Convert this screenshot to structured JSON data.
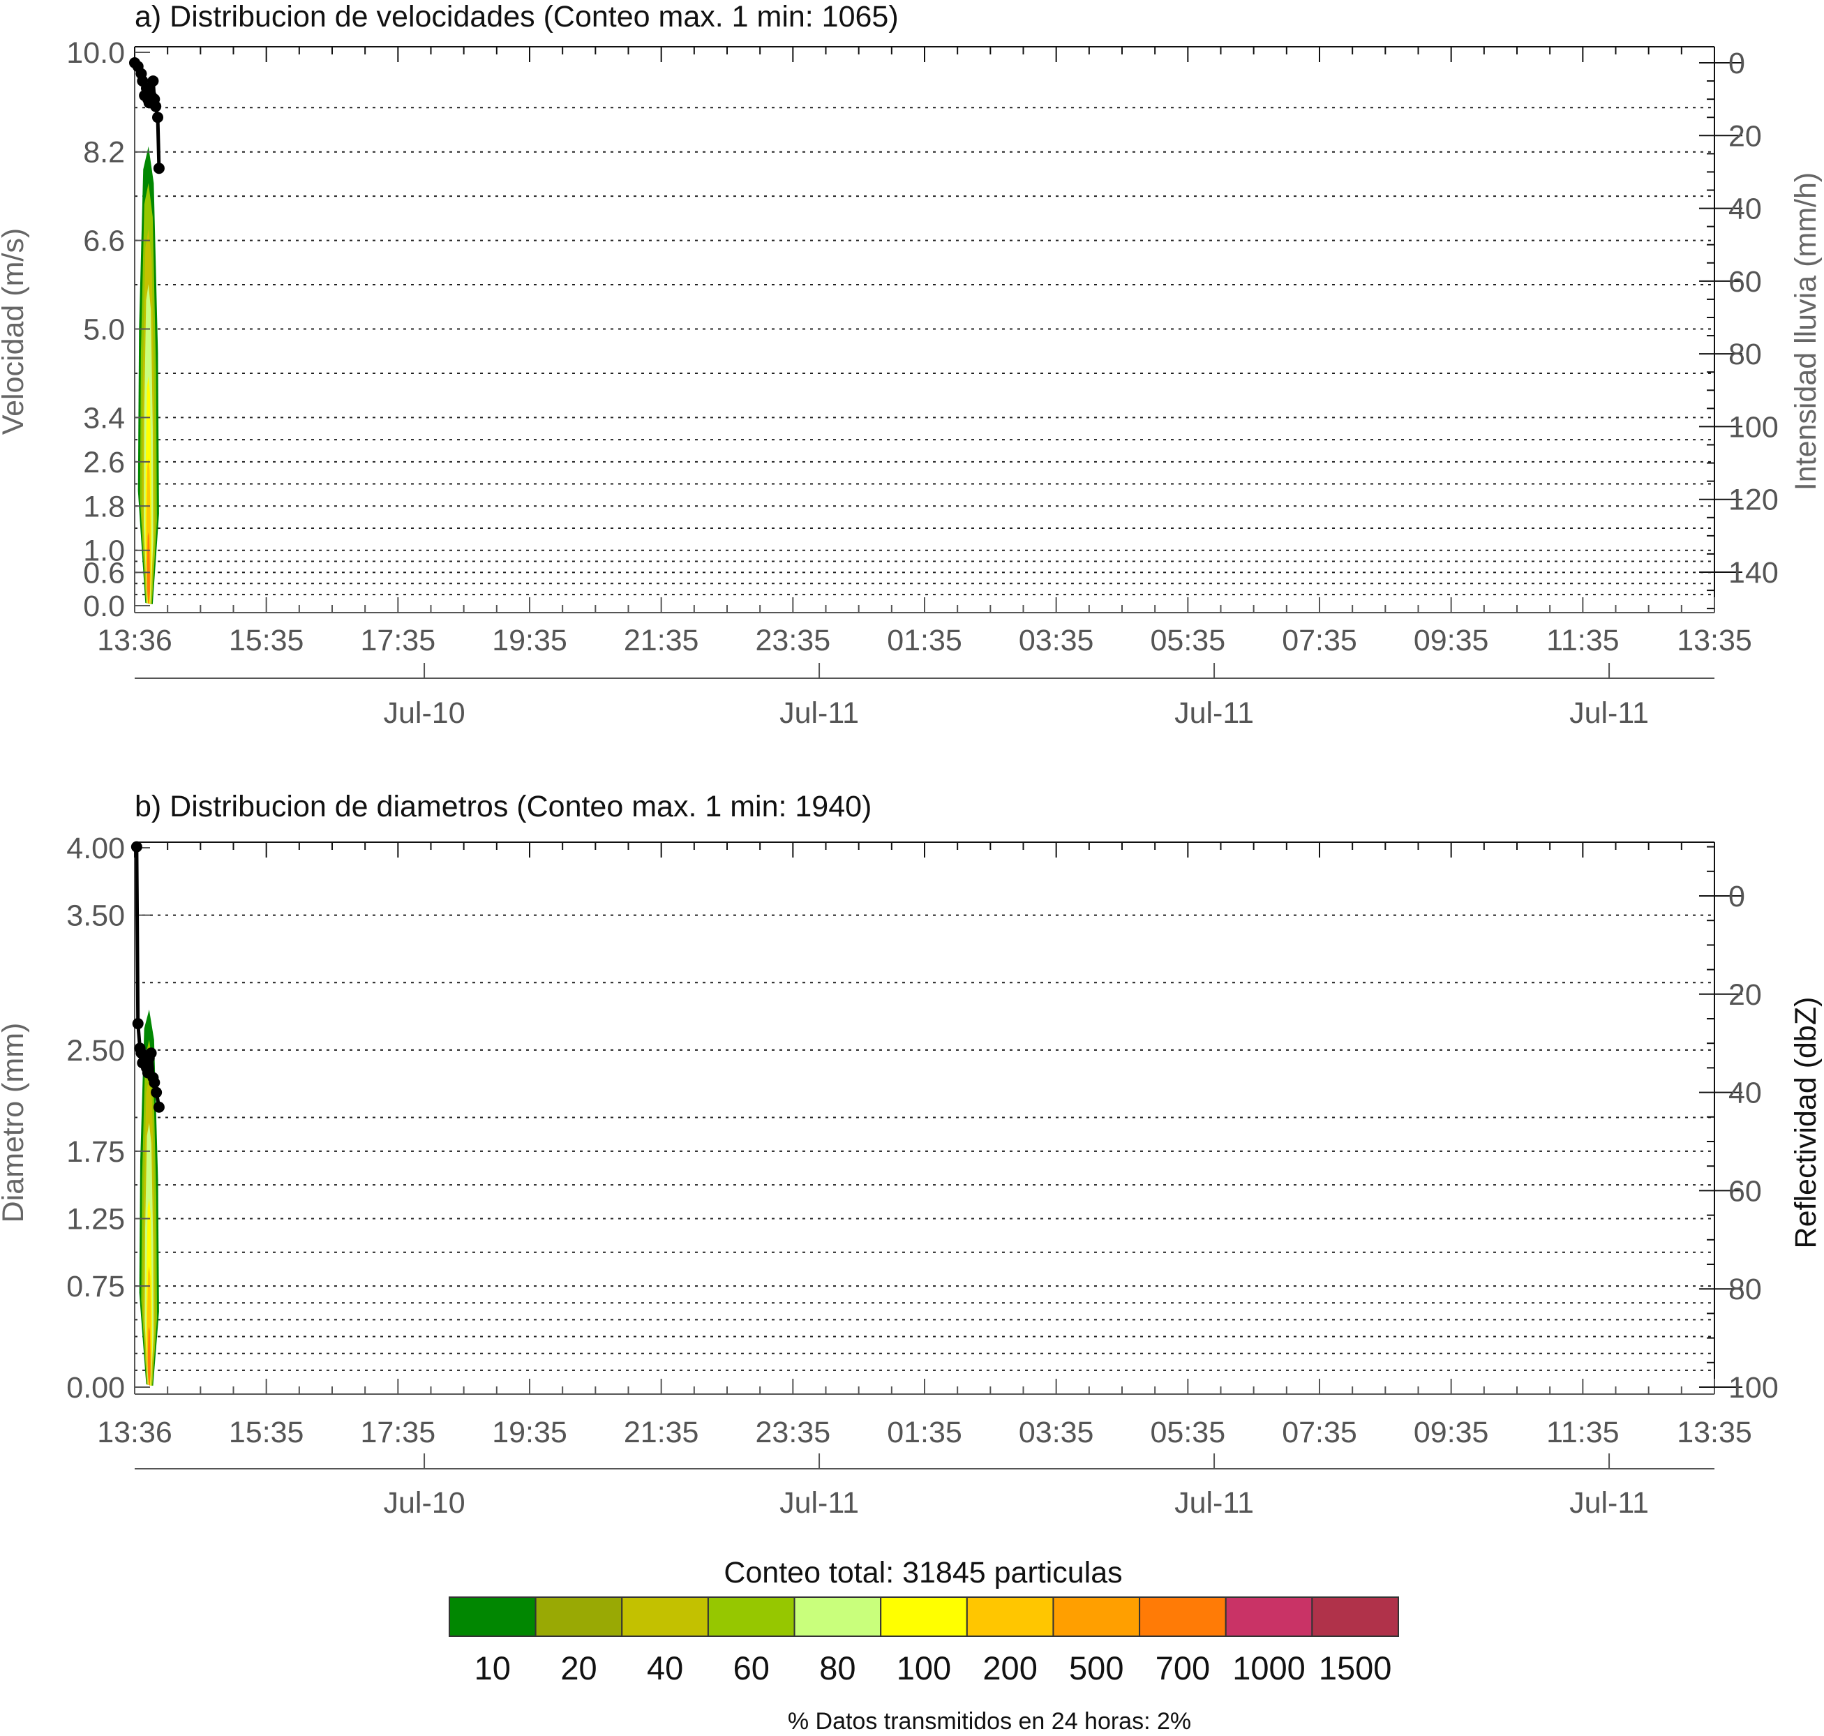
{
  "chart_data": [
    {
      "type": "heatmap",
      "panel": "a",
      "title": "a) Distribucion de velocidades (Conteo max. 1 min: 1065)",
      "ylabel": "Velocidad (m/s)",
      "y2label": "Intensidad lluvia (mm/h)",
      "ylim": [
        0.0,
        10.0
      ],
      "y2lim": [
        0,
        150
      ],
      "y2_inverted": true,
      "y_ticks": [
        "0.0",
        "0.6",
        "1.0",
        "1.8",
        "2.6",
        "3.4",
        "5.0",
        "6.6",
        "8.2",
        "10.0"
      ],
      "y_tick_values": [
        0.0,
        0.6,
        1.0,
        1.8,
        2.6,
        3.4,
        5.0,
        6.6,
        8.2,
        10.0
      ],
      "y_grid_values": [
        0.2,
        0.4,
        0.6,
        0.8,
        1.0,
        1.4,
        1.8,
        2.2,
        2.6,
        3.0,
        3.4,
        4.2,
        5.0,
        5.8,
        6.6,
        7.4,
        8.2,
        9.0
      ],
      "y2_ticks": [
        "0",
        "20",
        "40",
        "60",
        "80",
        "100",
        "120",
        "140"
      ],
      "y2_tick_values": [
        0,
        20,
        40,
        60,
        80,
        100,
        120,
        140
      ],
      "x_ticks": [
        "13:36",
        "15:35",
        "17:35",
        "19:35",
        "21:35",
        "23:35",
        "01:35",
        "03:35",
        "05:35",
        "07:35",
        "09:35",
        "11:35",
        "13:35"
      ],
      "date_ticks": [
        "Jul-10",
        "Jul-11",
        "Jul-11",
        "Jul-11"
      ],
      "date_tick_hours": [
        4.4,
        10.4,
        16.4,
        22.4
      ],
      "xlim_hours": [
        0,
        24
      ],
      "grid": "dotted horizontal",
      "line_series": {
        "name": "",
        "x_hours": [
          0.0,
          0.05,
          0.1,
          0.12,
          0.15,
          0.18,
          0.2,
          0.22,
          0.25,
          0.28,
          0.3,
          0.32,
          0.35,
          0.37
        ],
        "y2_values": [
          0,
          1,
          3,
          5,
          9,
          7,
          10,
          11,
          9,
          5,
          10,
          12,
          15,
          29
        ]
      },
      "heatmap_extent": {
        "x_hours": [
          0.05,
          0.37
        ],
        "y": [
          0.0,
          8.3
        ]
      }
    },
    {
      "type": "heatmap",
      "panel": "b",
      "title": "b) Distribucion de diametros (Conteo max. 1 min: 1940)",
      "ylabel": "Diametro (mm)",
      "y2label": "Reflectividad (dbZ)",
      "ylim": [
        0.0,
        4.0
      ],
      "y2lim": [
        -10,
        100
      ],
      "y2_inverted": true,
      "y_ticks": [
        "0.00",
        "0.75",
        "1.25",
        "1.75",
        "2.50",
        "3.50",
        "4.00"
      ],
      "y_tick_values": [
        0.0,
        0.75,
        1.25,
        1.75,
        2.5,
        3.5,
        4.0
      ],
      "y_grid_values": [
        0.125,
        0.25,
        0.375,
        0.5,
        0.625,
        0.75,
        1.0,
        1.25,
        1.5,
        1.75,
        2.0,
        2.5,
        3.0,
        3.5
      ],
      "y2_ticks": [
        "0",
        "20",
        "40",
        "60",
        "80",
        "100"
      ],
      "y2_tick_values": [
        0,
        20,
        40,
        60,
        80,
        100
      ],
      "x_ticks": [
        "13:36",
        "15:35",
        "17:35",
        "19:35",
        "21:35",
        "23:35",
        "01:35",
        "03:35",
        "05:35",
        "07:35",
        "09:35",
        "11:35",
        "13:35"
      ],
      "date_ticks": [
        "Jul-10",
        "Jul-11",
        "Jul-11",
        "Jul-11"
      ],
      "date_tick_hours": [
        4.4,
        10.4,
        16.4,
        22.4
      ],
      "xlim_hours": [
        0,
        24
      ],
      "grid": "dotted horizontal",
      "line_series": {
        "name": "",
        "x_hours": [
          0.03,
          0.05,
          0.08,
          0.1,
          0.12,
          0.15,
          0.18,
          0.2,
          0.22,
          0.25,
          0.28,
          0.3,
          0.33,
          0.37
        ],
        "y2_values": [
          -10,
          26,
          31,
          32,
          34,
          33,
          35,
          36,
          33,
          32,
          37,
          38,
          40,
          43
        ]
      },
      "heatmap_extent": {
        "x_hours": [
          0.07,
          0.37
        ],
        "y": [
          0.0,
          2.8
        ]
      }
    }
  ],
  "colorbar": {
    "title": "Conteo total: 31845 particulas",
    "labels": [
      "10",
      "20",
      "40",
      "60",
      "80",
      "100",
      "200",
      "500",
      "700",
      "1000",
      "1500"
    ],
    "colors": [
      "#018701",
      "#99a904",
      "#c3c100",
      "#96c700",
      "#c9ff7c",
      "#ffff00",
      "#ffc600",
      "#ff9f00",
      "#ff7b06",
      "#c93366",
      "#b0324a"
    ]
  },
  "footer": "% Datos transmitidos en 24 horas: 2%"
}
